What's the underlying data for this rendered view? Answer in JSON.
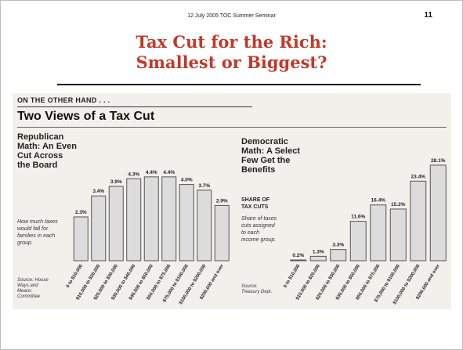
{
  "slide": {
    "header": "12 July 2005 TOC Summer Seminar",
    "number": "11",
    "title_line1": "Tax Cut for the Rich:",
    "title_line2": "Smallest or Biggest?"
  },
  "clipping": {
    "kicker": "ON THE OTHER HAND . . .",
    "heading": "Two Views of a Tax Cut",
    "left": {
      "title_lines": [
        "Republican",
        "Math: An Even",
        "Cut Across",
        "the Board"
      ],
      "subtitle_lines": [
        "How much taxes",
        "would fall for",
        "families in each",
        "group."
      ],
      "source_lines": [
        "Source: House",
        "Ways and",
        "Means",
        "Committee"
      ]
    },
    "right": {
      "title_lines": [
        "Democratic",
        "Math: A Select",
        "Few Get the",
        "Benefits"
      ],
      "label_lines": [
        "SHARE OF",
        "TAX CUTS"
      ],
      "subtitle_lines": [
        "Share of taxes",
        "cuts assigned",
        "to each",
        "income group."
      ],
      "source_lines": [
        "Source:",
        "Treasury Dept."
      ]
    }
  },
  "colors": {
    "title": "#c0392b",
    "bar_fill": "#dcdcdc",
    "bar_stroke": "#555555"
  },
  "chart_data": [
    {
      "type": "bar",
      "title": "Republican Math: An Even Cut Across the Board",
      "categories": [
        "0 to $10,000",
        "$10,000 to $20,000",
        "$20,000 to $30,000",
        "$30,000 to $40,000",
        "$40,000 to $50,000",
        "$50,000 to $75,000",
        "$75,000 to $100,000",
        "$100,000 to $200,000",
        "$200,000 and over"
      ],
      "values": [
        2.3,
        3.4,
        3.9,
        4.3,
        4.4,
        4.4,
        4.0,
        3.7,
        2.9
      ],
      "value_labels": [
        "2.3%",
        "3.4%",
        "3.9%",
        "4.3%",
        "4.4%",
        "4.4%",
        "4.0%",
        "3.7%",
        "2.9%"
      ],
      "ylim": [
        0,
        4.6
      ],
      "grid": false
    },
    {
      "type": "bar",
      "title": "Democratic Math: A Select Few Get the Benefits",
      "categories": [
        "0 to $10,000",
        "$10,000 to $20,000",
        "$20,000 to $30,000",
        "$30,000 to $50,000",
        "$50,000 to $75,000",
        "$75,000 to $100,000",
        "$100,000 to $200,000",
        "$200,000 and over"
      ],
      "values": [
        0.2,
        1.3,
        3.3,
        11.6,
        16.4,
        15.2,
        23.4,
        28.1
      ],
      "value_labels": [
        "0.2%",
        "1.3%",
        "3.3%",
        "11.6%",
        "16.4%",
        "15.2%",
        "23.4%",
        "28.1%"
      ],
      "ylim": [
        0,
        29
      ],
      "grid": false
    }
  ]
}
